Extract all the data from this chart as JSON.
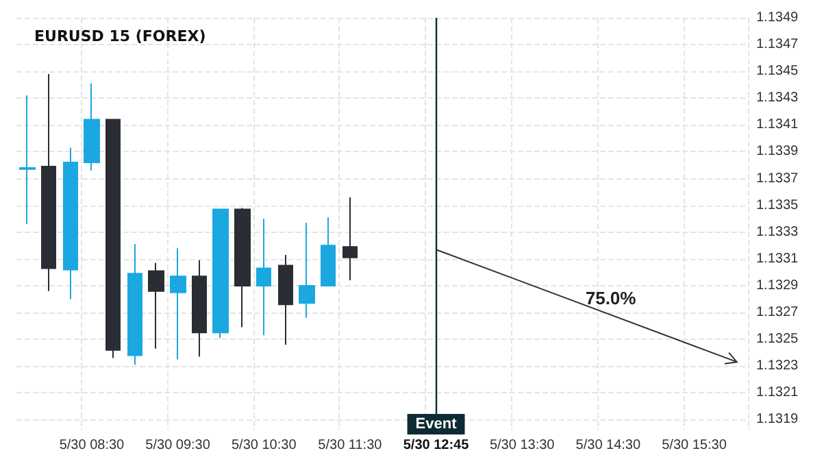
{
  "chart_data": {
    "type": "candlestick",
    "title": "EURUSD 15 (FOREX)",
    "categories": [
      null,
      null,
      null,
      "5/30 08:30",
      null,
      null,
      null,
      "5/30 09:30",
      null,
      null,
      null,
      "5/30 10:30",
      null,
      null,
      null,
      "5/30 11:30",
      null,
      null,
      null,
      "5/30 12:45",
      null,
      null,
      null,
      "5/30 13:30",
      null,
      null,
      null,
      "5/30 14:30",
      null,
      null,
      null,
      "5/30 15:30",
      null,
      null
    ],
    "ohlc": [
      [
        1.13377,
        1.13432,
        1.13336,
        1.13378
      ],
      [
        1.13379,
        1.13448,
        1.13286,
        1.13303
      ],
      [
        1.13302,
        1.13393,
        1.1328,
        1.13382
      ],
      [
        1.13382,
        1.13441,
        1.13376,
        1.13414
      ],
      [
        1.13414,
        1.13414,
        1.13236,
        1.13242
      ],
      [
        1.13238,
        1.13321,
        1.13231,
        1.13299
      ],
      [
        1.13301,
        1.13307,
        1.13243,
        1.13286
      ],
      [
        1.13285,
        1.13318,
        1.13235,
        1.13297
      ],
      [
        1.13297,
        1.13309,
        1.13237,
        1.13255
      ],
      [
        1.13255,
        1.13347,
        1.13251,
        1.13347
      ],
      [
        1.13347,
        1.13348,
        1.13259,
        1.1329
      ],
      [
        1.1329,
        1.1334,
        1.13253,
        1.13303
      ],
      [
        1.13305,
        1.13313,
        1.13246,
        1.13276
      ],
      [
        1.13277,
        1.13337,
        1.13266,
        1.1329
      ],
      [
        1.1329,
        1.13341,
        1.1329,
        1.1332
      ],
      [
        1.13319,
        1.13356,
        1.13294,
        1.13311
      ],
      null,
      null,
      null,
      null,
      null,
      null,
      null,
      null,
      null,
      null,
      null,
      null,
      null,
      null,
      null,
      null,
      null,
      null
    ],
    "colors": [
      "#1ba8e0",
      "#2b2d35",
      "#1ba8e0",
      "#1ba8e0",
      "#2b2d35",
      "#1ba8e0",
      "#2b2d35",
      "#1ba8e0",
      "#2b2d35",
      "#1ba8e0",
      "#2b2d35",
      "#1ba8e0",
      "#2b2d35",
      "#1ba8e0",
      "#1ba8e0",
      "#2b2d35",
      null,
      null,
      null,
      null,
      null,
      null,
      null,
      null,
      null,
      null,
      null,
      null,
      null,
      null,
      null,
      null,
      null,
      null
    ],
    "series": [
      {
        "type": "line",
        "values": [
          null,
          null,
          null,
          null,
          null,
          null,
          null,
          null,
          null,
          null,
          null,
          null,
          null,
          null,
          null,
          null,
          null,
          null,
          null,
          1.13317,
          null,
          null,
          null,
          null,
          null,
          null,
          null,
          null,
          null,
          null,
          null,
          null,
          null,
          1.13233
        ],
        "color": "#333333"
      }
    ],
    "ref_lines": [
      {
        "axis": "x",
        "value": "5/30 12:45",
        "label": "Event",
        "color": "#0d2b33"
      }
    ],
    "annotations": [
      "75.0%"
    ],
    "ylim": [
      1.13182,
      1.1349
    ],
    "yticks": [
      1.1319,
      1.1321,
      1.1323,
      1.1325,
      1.1327,
      1.1329,
      1.1331,
      1.1333,
      1.1335,
      1.1337,
      1.1339,
      1.1341,
      1.1343,
      1.1345,
      1.1347,
      1.1349
    ],
    "grid": true
  }
}
